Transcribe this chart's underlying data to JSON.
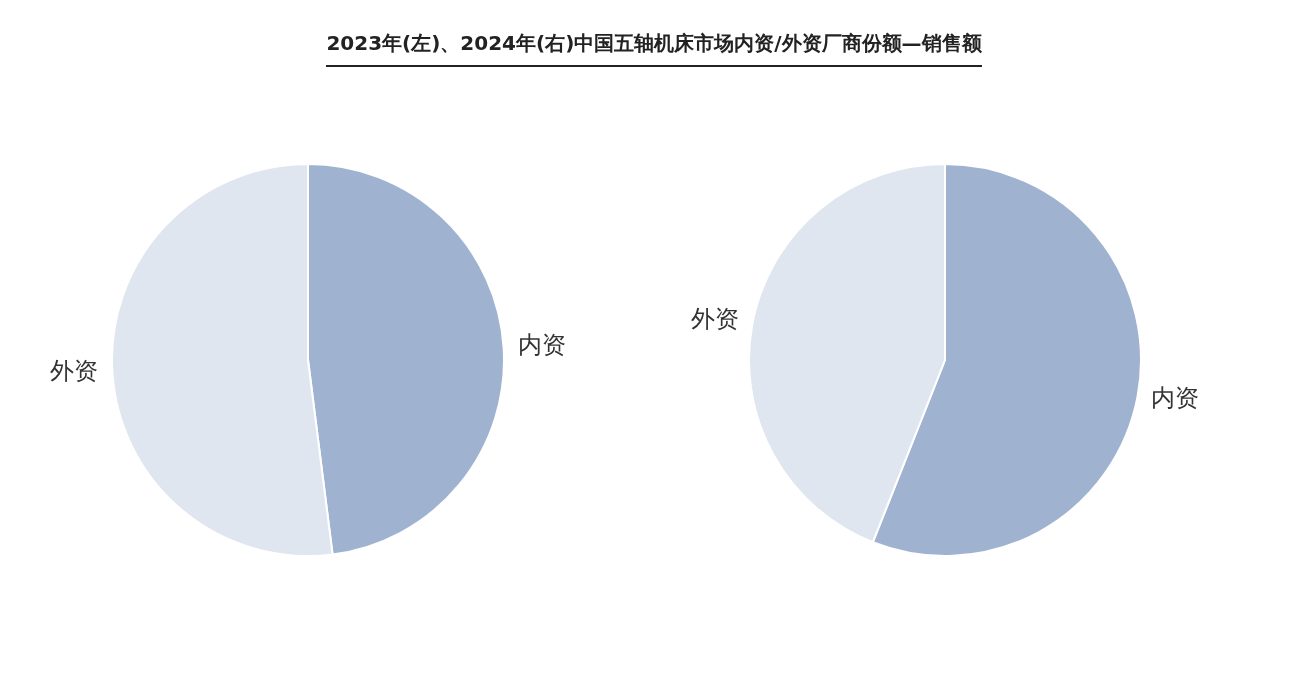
{
  "chart_data": [
    {
      "type": "pie",
      "title": "2023年(左)、2024年(右)中国五轴机床市场内资/外资厂商份额—销售额",
      "categories": [
        "内资",
        "外资"
      ],
      "values": [
        48,
        52
      ],
      "colors": [
        "#9fb3d1",
        "#e0e6ef"
      ]
    },
    {
      "type": "pie",
      "categories": [
        "内资",
        "外资"
      ],
      "values": [
        56,
        44
      ],
      "colors": [
        "#9fb3d1",
        "#e0e6ef"
      ]
    }
  ]
}
